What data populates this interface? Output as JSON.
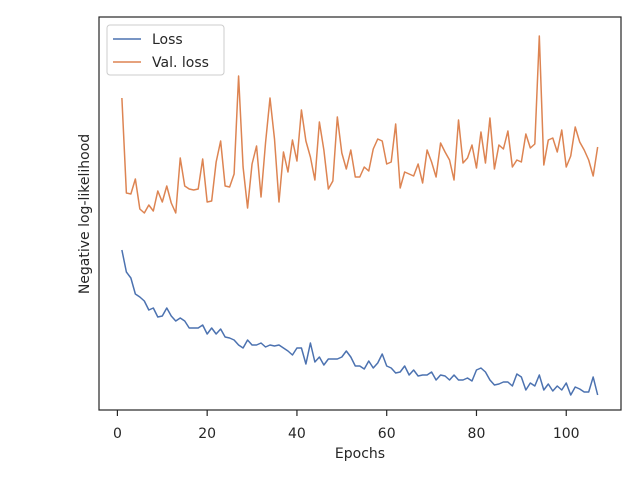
{
  "chart_data": {
    "type": "line",
    "x_label": "Epochs",
    "y_label": "Negative log-likelihood",
    "x": [
      1,
      2,
      3,
      4,
      5,
      6,
      7,
      8,
      9,
      10,
      11,
      12,
      13,
      14,
      15,
      16,
      17,
      18,
      19,
      20,
      21,
      22,
      23,
      24,
      25,
      26,
      27,
      28,
      29,
      30,
      31,
      32,
      33,
      34,
      35,
      36,
      37,
      38,
      39,
      40,
      41,
      42,
      43,
      44,
      45,
      46,
      47,
      48,
      49,
      50,
      51,
      52,
      53,
      54,
      55,
      56,
      57,
      58,
      59,
      60,
      61,
      62,
      63,
      64,
      65,
      66,
      67,
      68,
      69,
      70,
      71,
      72,
      73,
      74,
      75,
      76,
      77,
      78,
      79,
      80,
      81,
      82,
      83,
      84,
      85,
      86,
      87,
      88,
      89,
      90,
      91,
      92,
      93,
      94,
      95,
      96,
      97,
      98,
      99,
      100,
      101,
      102,
      103,
      104,
      105,
      106,
      107
    ],
    "series": [
      {
        "name": "Loss",
        "color": "#4c72b0",
        "values": [
          160,
          138,
          132,
          116,
          113,
          109,
          100,
          102,
          93,
          94,
          102,
          94,
          89,
          92,
          89,
          82,
          82,
          82,
          85,
          76,
          82,
          76,
          81,
          73,
          72,
          70,
          65,
          62,
          70,
          65,
          65,
          67,
          63,
          65,
          64,
          65,
          62,
          59,
          55,
          62,
          62,
          46,
          67,
          48,
          53,
          45,
          51,
          51,
          51,
          53,
          59,
          53,
          44,
          44,
          41,
          49,
          42,
          47,
          56,
          44,
          42,
          37,
          38,
          44,
          35,
          40,
          34,
          35,
          35,
          38,
          30,
          35,
          34,
          30,
          35,
          30,
          30,
          32,
          29,
          40,
          42,
          38,
          30,
          25,
          26,
          28,
          28,
          24,
          36,
          33,
          20,
          27,
          24,
          35,
          20,
          26,
          19,
          24,
          20,
          27,
          15,
          23,
          21,
          18,
          18,
          33,
          15
        ]
      },
      {
        "name": "Val. loss",
        "color": "#dd8452",
        "values": [
          312,
          217,
          216,
          231,
          201,
          197,
          205,
          199,
          219,
          208,
          224,
          207,
          197,
          252,
          224,
          221,
          220,
          221,
          251,
          208,
          209,
          248,
          269,
          224,
          223,
          236,
          334,
          243,
          202,
          246,
          264,
          213,
          267,
          312,
          271,
          208,
          258,
          238,
          270,
          249,
          300,
          269,
          253,
          230,
          288,
          260,
          221,
          229,
          293,
          257,
          241,
          260,
          233,
          233,
          243,
          239,
          261,
          271,
          269,
          246,
          248,
          286,
          222,
          238,
          236,
          234,
          246,
          227,
          260,
          248,
          233,
          267,
          258,
          250,
          230,
          290,
          247,
          252,
          265,
          242,
          278,
          247,
          292,
          241,
          265,
          261,
          279,
          243,
          250,
          248,
          276,
          262,
          266,
          374,
          245,
          270,
          272,
          258,
          280,
          243,
          254,
          283,
          268,
          260,
          250,
          234,
          263
        ]
      }
    ],
    "xlim": [
      -4.1,
      112.2
    ],
    "xticks": [
      0,
      20,
      40,
      60,
      80,
      100
    ],
    "ylim": [
      0,
      393
    ],
    "yticks": [],
    "legend": "upper left",
    "grid": false
  }
}
